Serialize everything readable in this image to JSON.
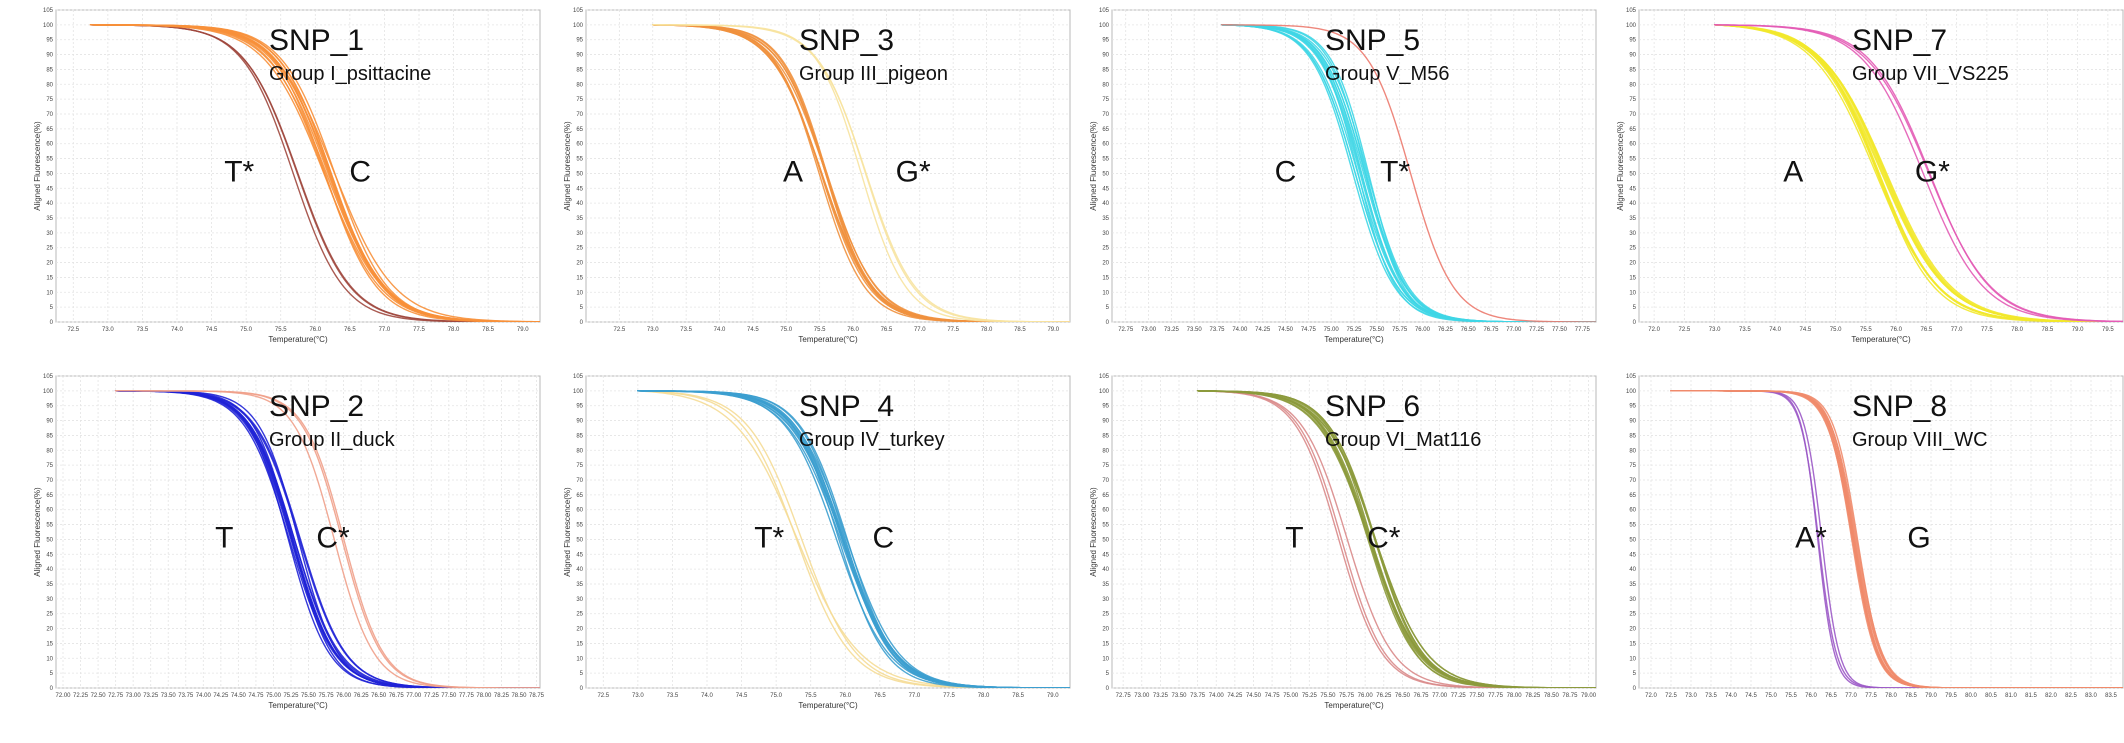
{
  "chart_data": [
    {
      "type": "line",
      "title": "SNP_1",
      "subtitle": "Group I_psittacine",
      "xlabel": "Temperature(°C)",
      "ylabel": "Aligned Fluorescence(%)",
      "xticks": [
        "72.5",
        "73.0",
        "73.5",
        "74.0",
        "74.5",
        "75.0",
        "75.5",
        "76.0",
        "76.5",
        "77.0",
        "77.5",
        "78.0",
        "78.5",
        "79.0"
      ],
      "xlim": [
        72.25,
        79.25
      ],
      "ylim": [
        0,
        105
      ],
      "yticks": [
        0,
        5,
        10,
        15,
        20,
        25,
        30,
        35,
        40,
        45,
        50,
        55,
        60,
        65,
        70,
        75,
        80,
        85,
        90,
        95,
        100,
        105
      ],
      "curve_start_x": 72.75,
      "series": [
        {
          "name": "T*",
          "label_x": 74.9,
          "color": "#a0483e",
          "tm": 75.75,
          "width": 0.38,
          "count": 3
        },
        {
          "name": "C",
          "label_x": 76.65,
          "color": "#f7903a",
          "tm": 76.2,
          "width": 0.4,
          "count": 12
        }
      ]
    },
    {
      "type": "line",
      "title": "SNP_3",
      "subtitle": "Group III_pigeon",
      "xlabel": "Temperature(°C)",
      "ylabel": "Aligned Fluorescence(%)",
      "xticks": [
        "72.5",
        "73.0",
        "73.5",
        "74.0",
        "74.5",
        "75.0",
        "75.5",
        "76.0",
        "76.5",
        "77.0",
        "77.5",
        "78.0",
        "78.5",
        "79.0"
      ],
      "xlim": [
        72.0,
        79.25
      ],
      "ylim": [
        0,
        105
      ],
      "yticks": [
        0,
        5,
        10,
        15,
        20,
        25,
        30,
        35,
        40,
        45,
        50,
        55,
        60,
        65,
        70,
        75,
        80,
        85,
        90,
        95,
        100,
        105
      ],
      "curve_start_x": 73.0,
      "series": [
        {
          "name": "A",
          "label_x": 75.1,
          "color": "#f0913e",
          "tm": 75.55,
          "width": 0.36,
          "count": 10
        },
        {
          "name": "G*",
          "label_x": 76.9,
          "color": "#f7e3a0",
          "tm": 76.15,
          "width": 0.34,
          "count": 3
        }
      ]
    },
    {
      "type": "line",
      "title": "SNP_5",
      "subtitle": "Group V_M56",
      "xlabel": "Temperature(°C)",
      "ylabel": "Aligned Fluorescence(%)",
      "xticks": [
        "72.75",
        "73.00",
        "73.25",
        "73.50",
        "73.75",
        "74.00",
        "74.25",
        "74.50",
        "74.75",
        "75.00",
        "75.25",
        "75.50",
        "75.75",
        "76.00",
        "76.25",
        "76.50",
        "76.75",
        "77.00",
        "77.25",
        "77.50",
        "77.75"
      ],
      "xlim": [
        72.6,
        77.9
      ],
      "ylim": [
        0,
        105
      ],
      "yticks": [
        0,
        5,
        10,
        15,
        20,
        25,
        30,
        35,
        40,
        45,
        50,
        55,
        60,
        65,
        70,
        75,
        80,
        85,
        90,
        95,
        100,
        105
      ],
      "curve_start_x": 73.8,
      "series": [
        {
          "name": "C",
          "label_x": 74.5,
          "color": "#3fd6e6",
          "tm": 75.32,
          "width": 0.22,
          "count": 14
        },
        {
          "name": "T*",
          "label_x": 75.7,
          "color": "#ec7a6e",
          "tm": 75.85,
          "width": 0.24,
          "count": 1
        }
      ]
    },
    {
      "type": "line",
      "title": "SNP_7",
      "subtitle": "Group VII_VS225",
      "xlabel": "Temperature(°C)",
      "ylabel": "Aligned Fluorescence(%)",
      "xticks": [
        "72.0",
        "72.5",
        "73.0",
        "73.5",
        "74.0",
        "74.5",
        "75.0",
        "75.5",
        "76.0",
        "76.5",
        "77.0",
        "77.5",
        "78.0",
        "78.5",
        "79.0",
        "79.5"
      ],
      "xlim": [
        71.75,
        79.75
      ],
      "ylim": [
        0,
        105
      ],
      "yticks": [
        0,
        5,
        10,
        15,
        20,
        25,
        30,
        35,
        40,
        45,
        50,
        55,
        60,
        65,
        70,
        75,
        80,
        85,
        90,
        95,
        100,
        105
      ],
      "curve_start_x": 73.0,
      "series": [
        {
          "name": "A",
          "label_x": 74.3,
          "color": "#f2e82b",
          "tm": 75.75,
          "width": 0.5,
          "count": 12
        },
        {
          "name": "G*",
          "label_x": 76.6,
          "color": "#e35bb5",
          "tm": 76.5,
          "width": 0.52,
          "count": 3
        }
      ]
    },
    {
      "type": "line",
      "title": "SNP_2",
      "subtitle": "Group II_duck",
      "xlabel": "Temperature(°C)",
      "ylabel": "Aligned Fluorescence(%)",
      "xticks": [
        "72.00",
        "72.25",
        "72.50",
        "72.75",
        "73.00",
        "73.25",
        "73.50",
        "73.75",
        "74.00",
        "74.25",
        "74.50",
        "74.75",
        "75.00",
        "75.25",
        "75.50",
        "75.75",
        "76.00",
        "76.25",
        "76.50",
        "76.75",
        "77.00",
        "77.25",
        "77.50",
        "77.75",
        "78.00",
        "78.25",
        "78.50",
        "78.75"
      ],
      "xlim": [
        71.9,
        78.8
      ],
      "ylim": [
        0,
        105
      ],
      "yticks": [
        0,
        5,
        10,
        15,
        20,
        25,
        30,
        35,
        40,
        45,
        50,
        55,
        60,
        65,
        70,
        75,
        80,
        85,
        90,
        95,
        100,
        105
      ],
      "curve_start_x": 72.75,
      "series": [
        {
          "name": "T",
          "label_x": 74.3,
          "color": "#1f22d6",
          "tm": 75.3,
          "width": 0.3,
          "count": 12
        },
        {
          "name": "C*",
          "label_x": 75.85,
          "color": "#f0a089",
          "tm": 75.95,
          "width": 0.3,
          "count": 3
        }
      ]
    },
    {
      "type": "line",
      "title": "SNP_4",
      "subtitle": "Group IV_turkey",
      "xlabel": "Temperature(°C)",
      "ylabel": "Aligned Fluorescence(%)",
      "xticks": [
        "72.5",
        "73.0",
        "73.5",
        "74.0",
        "74.5",
        "75.0",
        "75.5",
        "76.0",
        "76.5",
        "77.0",
        "77.5",
        "78.0",
        "78.5",
        "79.0"
      ],
      "xlim": [
        72.25,
        79.25
      ],
      "ylim": [
        0,
        105
      ],
      "yticks": [
        0,
        5,
        10,
        15,
        20,
        25,
        30,
        35,
        40,
        45,
        50,
        55,
        60,
        65,
        70,
        75,
        80,
        85,
        90,
        95,
        100,
        105
      ],
      "curve_start_x": 73.0,
      "series": [
        {
          "name": "T*",
          "label_x": 74.9,
          "color": "#f5dc96",
          "tm": 75.35,
          "width": 0.42,
          "count": 3
        },
        {
          "name": "C",
          "label_x": 76.55,
          "color": "#3c9fcf",
          "tm": 75.95,
          "width": 0.36,
          "count": 12
        }
      ]
    },
    {
      "type": "line",
      "title": "SNP_6",
      "subtitle": "Group VI_Mat116",
      "xlabel": "Temperature(°C)",
      "ylabel": "Aligned Fluorescence(%)",
      "xticks": [
        "72.75",
        "73.00",
        "73.25",
        "73.50",
        "73.75",
        "74.00",
        "74.25",
        "74.50",
        "74.75",
        "75.00",
        "75.25",
        "75.50",
        "75.75",
        "76.00",
        "76.25",
        "76.50",
        "76.75",
        "77.00",
        "77.25",
        "77.50",
        "77.75",
        "78.00",
        "78.25",
        "78.50",
        "78.75",
        "79.00"
      ],
      "xlim": [
        72.6,
        79.1
      ],
      "ylim": [
        0,
        105
      ],
      "yticks": [
        0,
        5,
        10,
        15,
        20,
        25,
        30,
        35,
        40,
        45,
        50,
        55,
        60,
        65,
        70,
        75,
        80,
        85,
        90,
        95,
        100,
        105
      ],
      "curve_start_x": 73.75,
      "series": [
        {
          "name": "T",
          "label_x": 75.05,
          "color": "#d98a8a",
          "tm": 75.7,
          "width": 0.3,
          "count": 3
        },
        {
          "name": "C*",
          "label_x": 76.25,
          "color": "#8c9a3c",
          "tm": 76.05,
          "width": 0.32,
          "count": 12
        }
      ]
    },
    {
      "type": "line",
      "title": "SNP_8",
      "subtitle": "Group VIII_WC",
      "xlabel": "",
      "ylabel": "",
      "xticks": [
        "72.0",
        "72.5",
        "73.0",
        "73.5",
        "74.0",
        "74.5",
        "75.0",
        "75.5",
        "76.0",
        "76.5",
        "77.0",
        "77.5",
        "78.0",
        "78.5",
        "79.0",
        "79.5",
        "80.0",
        "80.5",
        "81.0",
        "81.5",
        "82.0",
        "82.5",
        "83.0",
        "83.5"
      ],
      "xlim": [
        71.7,
        83.8
      ],
      "ylim": [
        0,
        105
      ],
      "yticks": [
        0,
        5,
        10,
        15,
        20,
        25,
        30,
        35,
        40,
        45,
        50,
        55,
        60,
        65,
        70,
        75,
        80,
        85,
        90,
        95,
        100,
        105
      ],
      "curve_start_x": 72.5,
      "series": [
        {
          "name": "A*",
          "label_x": 76.0,
          "color": "#9b59c7",
          "tm": 76.25,
          "width": 0.22,
          "count": 3
        },
        {
          "name": "G",
          "label_x": 78.7,
          "color": "#f08b6b",
          "tm": 77.1,
          "width": 0.3,
          "count": 12
        }
      ]
    }
  ]
}
